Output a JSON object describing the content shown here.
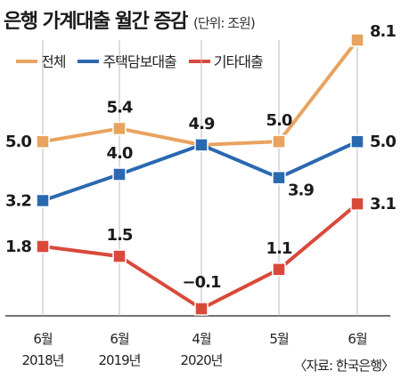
{
  "title": "은행 가계대출 월간 증감",
  "unit": "(단위: 조원)",
  "source": "〈자료: 한국은행〉",
  "chart_data": {
    "type": "line",
    "title": "은행 가계대출 월간 증감",
    "categories": [
      [
        "6월",
        "2018년"
      ],
      [
        "6월",
        "2019년"
      ],
      [
        "4월",
        "2020년"
      ],
      [
        "5월",
        ""
      ],
      [
        "6월",
        ""
      ]
    ],
    "ylim": [
      -0.1,
      8.1
    ],
    "grid": false,
    "legend_position": "top-left",
    "series": [
      {
        "name": "전체",
        "color": "#e8a35f",
        "values": [
          5.0,
          5.4,
          4.9,
          5.0,
          8.1
        ],
        "labels": [
          "5.0",
          "5.4",
          "4.9",
          "5.0",
          "8.1"
        ]
      },
      {
        "name": "주택담보대출",
        "color": "#2a68b0",
        "values": [
          3.2,
          4.0,
          4.9,
          3.9,
          5.0
        ],
        "labels": [
          "3.2",
          "4.0",
          "",
          "3.9",
          "5.0"
        ]
      },
      {
        "name": "기타대출",
        "color": "#d9493a",
        "values": [
          1.8,
          1.5,
          -0.1,
          1.1,
          3.1
        ],
        "labels": [
          "1.8",
          "1.5",
          "−0.1",
          "1.1",
          "3.1"
        ]
      }
    ]
  }
}
